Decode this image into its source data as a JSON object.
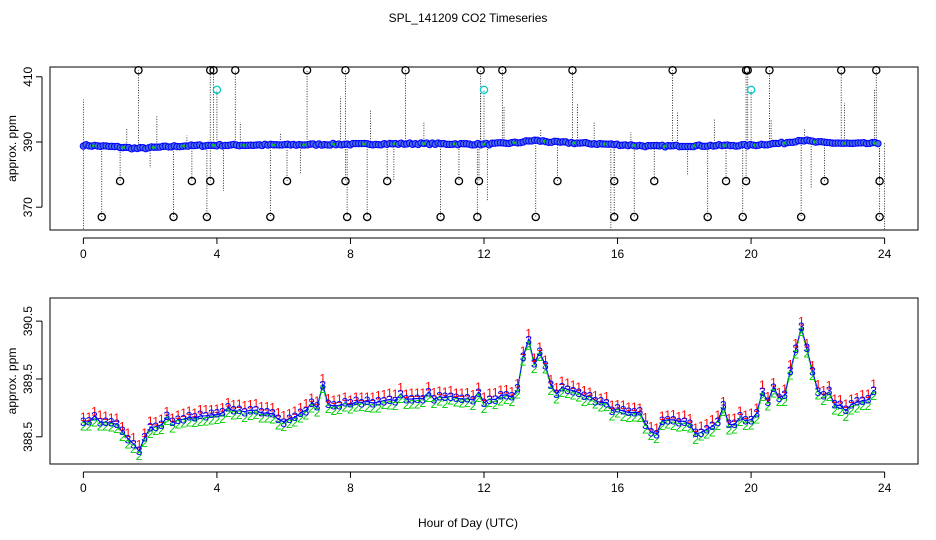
{
  "chart_data": [
    {
      "type": "scatter",
      "title": "SPL_141209  CO2 Timeseries",
      "ylabel": "approx. ppm",
      "xlabel": "",
      "xlim": [
        -1,
        25
      ],
      "ylim": [
        363,
        413
      ],
      "x_ticks": [
        0,
        4,
        8,
        12,
        16,
        20,
        24
      ],
      "x_tick_labels": [
        "0",
        "4",
        "8",
        "12",
        "16",
        "20",
        "24"
      ],
      "y_ticks": [
        370,
        390,
        410
      ],
      "y_tick_labels": [
        "370",
        "390",
        "410"
      ],
      "colors": {
        "main": "#0000ff",
        "fill": "#4a6fdc",
        "accent": "#00cc00",
        "outlier": "#000000",
        "highlight": "#00cccc"
      },
      "baseline_keypoints": [
        [
          0,
          389.0
        ],
        [
          1.0,
          388.5
        ],
        [
          1.6,
          388.0
        ],
        [
          3.0,
          388.8
        ],
        [
          4.0,
          389.0
        ],
        [
          6.0,
          389.1
        ],
        [
          7.5,
          389.3
        ],
        [
          8.0,
          389.3
        ],
        [
          10.0,
          389.5
        ],
        [
          12.0,
          389.3
        ],
        [
          13.0,
          389.8
        ],
        [
          13.5,
          390.5
        ],
        [
          14.0,
          390.0
        ],
        [
          15.0,
          389.6
        ],
        [
          16.0,
          389.2
        ],
        [
          17.0,
          388.7
        ],
        [
          18.0,
          388.8
        ],
        [
          19.0,
          388.9
        ],
        [
          20.0,
          389.0
        ],
        [
          21.0,
          389.7
        ],
        [
          21.5,
          390.6
        ],
        [
          22.0,
          389.9
        ],
        [
          23.0,
          389.5
        ],
        [
          23.8,
          389.6
        ]
      ],
      "outliers_top": [
        1.65,
        3.8,
        3.9,
        4.55,
        6.7,
        7.85,
        9.65,
        11.9,
        12.55,
        14.65,
        17.65,
        19.85,
        19.9,
        20.55,
        22.7,
        23.75
      ],
      "outliers_bottom": [
        0.55,
        2.7,
        3.7,
        5.6,
        7.9,
        8.5,
        10.7,
        11.8,
        13.55,
        15.9,
        16.5,
        18.7,
        19.75,
        21.5,
        23.85
      ],
      "outliers_mid_low": [
        1.1,
        3.25,
        3.8,
        6.1,
        7.85,
        9.1,
        11.25,
        11.85,
        14.2,
        15.9,
        17.1,
        19.25,
        19.85,
        22.2,
        23.85
      ],
      "outliers_cyan": [
        4.0,
        12.0,
        20.0
      ],
      "spikes_up": [
        [
          0.0,
          403
        ],
        [
          1.3,
          394
        ],
        [
          2.2,
          398
        ],
        [
          3.1,
          392
        ],
        [
          4.7,
          396
        ],
        [
          5.9,
          393
        ],
        [
          7.7,
          404
        ],
        [
          8.6,
          400
        ],
        [
          10.2,
          396
        ],
        [
          11.9,
          405
        ],
        [
          12.6,
          401
        ],
        [
          13.7,
          394
        ],
        [
          14.8,
          402
        ],
        [
          15.3,
          396
        ],
        [
          16.4,
          393
        ],
        [
          17.8,
          399
        ],
        [
          18.9,
          397
        ],
        [
          20.6,
          397
        ],
        [
          21.6,
          394
        ],
        [
          22.8,
          402
        ],
        [
          23.7,
          406
        ]
      ],
      "spikes_down": [
        [
          0.0,
          363
        ],
        [
          2.0,
          382
        ],
        [
          4.2,
          375
        ],
        [
          6.5,
          380
        ],
        [
          9.3,
          378
        ],
        [
          12.1,
          372
        ],
        [
          15.8,
          363
        ],
        [
          18.1,
          380
        ],
        [
          21.8,
          376
        ],
        [
          24.0,
          363
        ]
      ]
    },
    {
      "type": "scatter",
      "title": "",
      "ylabel": "approx. ppm",
      "xlabel": "Hour of Day (UTC)",
      "xlim": [
        -1,
        25
      ],
      "ylim": [
        388.03,
        390.9
      ],
      "x_ticks": [
        0,
        4,
        8,
        12,
        16,
        20,
        24
      ],
      "x_tick_labels": [
        "0",
        "4",
        "8",
        "12",
        "16",
        "20",
        "24"
      ],
      "y_ticks": [
        388.5,
        389.5,
        390.5
      ],
      "y_tick_labels": [
        "388.5",
        "389.5",
        "390.5"
      ],
      "series": [
        {
          "name": "1",
          "color": "#ff0000",
          "offset": 0.1
        },
        {
          "name": "2",
          "color": "#00cc00",
          "offset": -0.09
        },
        {
          "name": "3",
          "color": "#0000ff",
          "offset": 0.0
        }
      ],
      "center_line_color": "#0000ff",
      "center_dash_color": "#00cc00",
      "keypoints": [
        [
          0,
          388.78
        ],
        [
          0.5,
          388.75
        ],
        [
          1.0,
          388.7
        ],
        [
          1.2,
          388.58
        ],
        [
          1.5,
          388.36
        ],
        [
          1.75,
          388.38
        ],
        [
          2.0,
          388.64
        ],
        [
          3.0,
          388.8
        ],
        [
          4.0,
          388.9
        ],
        [
          5.0,
          388.95
        ],
        [
          5.5,
          388.92
        ],
        [
          6.0,
          388.78
        ],
        [
          7.0,
          389.02
        ],
        [
          8.0,
          389.08
        ],
        [
          10.0,
          389.15
        ],
        [
          11.0,
          389.2
        ],
        [
          12.0,
          389.1
        ],
        [
          12.5,
          389.2
        ],
        [
          13.0,
          389.3
        ],
        [
          13.3,
          390.3
        ],
        [
          13.5,
          389.75
        ],
        [
          13.7,
          390.0
        ],
        [
          14.0,
          389.4
        ],
        [
          15.0,
          389.22
        ],
        [
          16.0,
          389.0
        ],
        [
          16.5,
          388.9
        ],
        [
          17.0,
          388.6
        ],
        [
          17.1,
          388.45
        ],
        [
          17.3,
          388.8
        ],
        [
          18.0,
          388.78
        ],
        [
          18.5,
          388.6
        ],
        [
          19.0,
          388.75
        ],
        [
          19.1,
          389.2
        ],
        [
          19.3,
          388.7
        ],
        [
          19.5,
          388.7
        ],
        [
          20.0,
          388.8
        ],
        [
          20.5,
          389.1
        ],
        [
          21.0,
          389.2
        ],
        [
          21.5,
          390.42
        ],
        [
          21.8,
          389.7
        ],
        [
          22.0,
          389.3
        ],
        [
          22.5,
          389.05
        ],
        [
          23.0,
          389.08
        ],
        [
          23.8,
          389.2
        ]
      ],
      "spikes": [
        [
          0.3,
          0.08
        ],
        [
          1.7,
          -0.1
        ],
        [
          2.5,
          0.12
        ],
        [
          4.4,
          0.1
        ],
        [
          6.8,
          0.12
        ],
        [
          7.2,
          0.35
        ],
        [
          9.5,
          0.1
        ],
        [
          10.3,
          0.12
        ],
        [
          11.8,
          0.14
        ],
        [
          12.9,
          -0.1
        ],
        [
          14.1,
          -0.14
        ],
        [
          15.8,
          -0.1
        ],
        [
          16.7,
          0.1
        ],
        [
          18.4,
          -0.1
        ],
        [
          19.7,
          0.1
        ],
        [
          20.3,
          0.25
        ],
        [
          20.7,
          0.2
        ],
        [
          22.3,
          0.15
        ],
        [
          22.9,
          -0.1
        ],
        [
          23.6,
          0.12
        ]
      ]
    }
  ]
}
